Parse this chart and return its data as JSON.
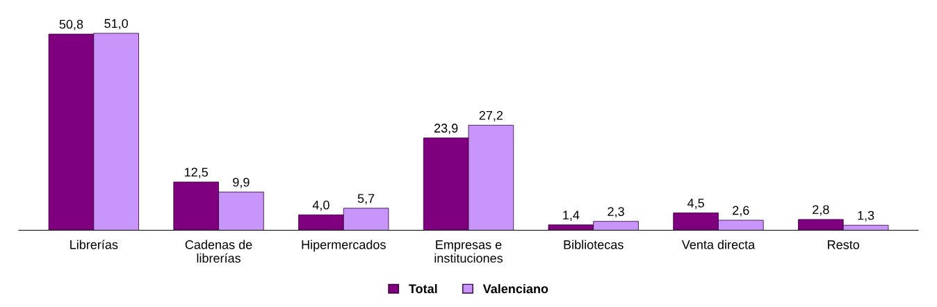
{
  "chart_data": {
    "type": "bar",
    "categories": [
      "Librerías",
      "Cadenas de\nlibrerías",
      "Hipermercados",
      "Empresas e\ninstituciones",
      "Bibliotecas",
      "Venta directa",
      "Resto"
    ],
    "series": [
      {
        "name": "Total",
        "color": "#7f007f",
        "values": [
          50.8,
          12.5,
          4.0,
          23.9,
          1.4,
          4.5,
          2.8
        ],
        "value_labels": [
          "50,8",
          "12,5",
          "4,0",
          "23,9",
          "1,4",
          "4,5",
          "2,8"
        ]
      },
      {
        "name": "Valenciano",
        "color": "#c896fa",
        "values": [
          51.0,
          9.9,
          5.7,
          27.2,
          2.3,
          2.6,
          1.3
        ],
        "value_labels": [
          "51,0",
          "9,9",
          "5,7",
          "27,2",
          "2,3",
          "2,6",
          "1,3"
        ]
      }
    ],
    "legend": "bottom",
    "grid": false
  }
}
